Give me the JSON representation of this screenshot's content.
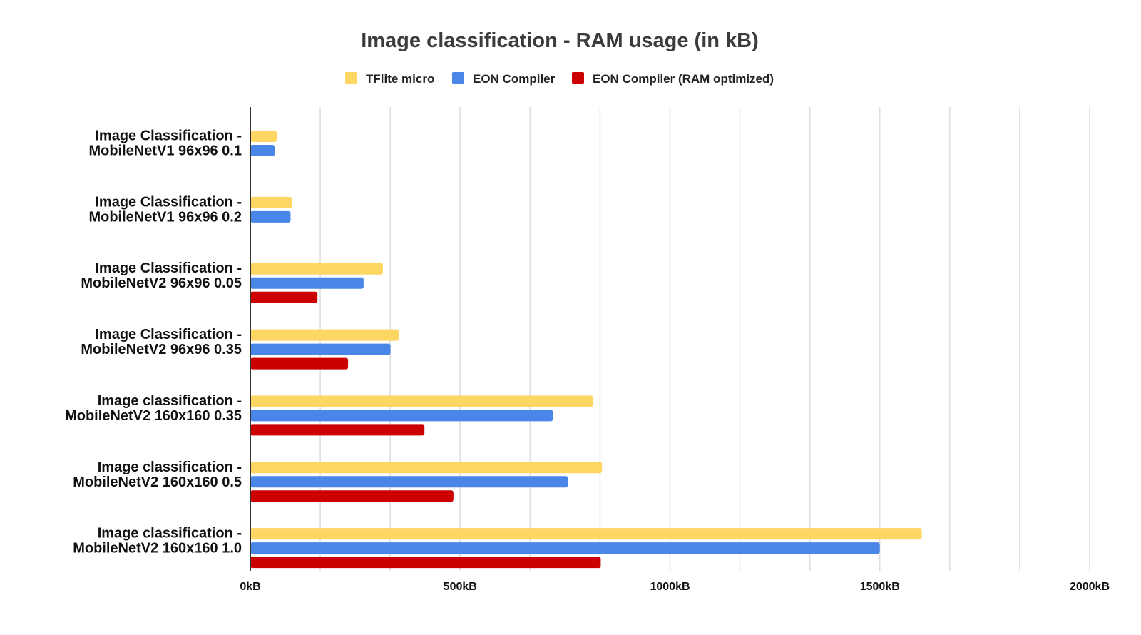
{
  "chart_data": {
    "type": "bar",
    "orientation": "horizontal",
    "title": "Image classification - RAM usage (in kB)",
    "xlabel": "",
    "ylabel": "",
    "xlim": [
      0,
      2000
    ],
    "x_ticks": [
      {
        "value": 0,
        "label": "0kB"
      },
      {
        "value": 500,
        "label": "500kB"
      },
      {
        "value": 1000,
        "label": "1000kB"
      },
      {
        "value": 1500,
        "label": "1500kB"
      },
      {
        "value": 2000,
        "label": "2000kB"
      }
    ],
    "grid": true,
    "legend_position": "top",
    "categories": [
      [
        "Image Classification -",
        "MobileNetV1 96x96 0.1"
      ],
      [
        "Image Classification -",
        "MobileNetV1 96x96 0.2"
      ],
      [
        "Image Classification -",
        "MobileNetV2 96x96 0.05"
      ],
      [
        "Image Classification -",
        "MobileNetV2 96x96 0.35"
      ],
      [
        "Image classification -",
        "MobileNetV2 160x160 0.35"
      ],
      [
        "Image classification -",
        "MobileNetV2 160x160 0.5"
      ],
      [
        "Image classification -",
        "MobileNetV2 160x160 1.0"
      ]
    ],
    "series": [
      {
        "name": "TFlite micro",
        "color": "#fdd663",
        "values": [
          63,
          99,
          316,
          354,
          817,
          838,
          1600
        ]
      },
      {
        "name": "EON Compiler",
        "color": "#4a86e8",
        "values": [
          58,
          96,
          270,
          334,
          721,
          757,
          1500
        ]
      },
      {
        "name": "EON Compiler (RAM optimized)",
        "color": "#cc0000",
        "values": [
          null,
          null,
          160,
          233,
          415,
          484,
          835
        ]
      }
    ]
  }
}
